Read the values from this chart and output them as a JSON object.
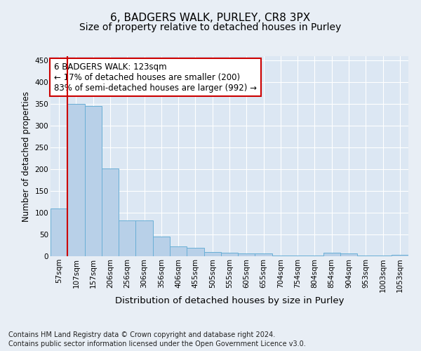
{
  "title": "6, BADGERS WALK, PURLEY, CR8 3PX",
  "subtitle": "Size of property relative to detached houses in Purley",
  "xlabel": "Distribution of detached houses by size in Purley",
  "ylabel": "Number of detached properties",
  "footnote1": "Contains HM Land Registry data © Crown copyright and database right 2024.",
  "footnote2": "Contains public sector information licensed under the Open Government Licence v3.0.",
  "categories": [
    "57sqm",
    "107sqm",
    "157sqm",
    "206sqm",
    "256sqm",
    "306sqm",
    "356sqm",
    "406sqm",
    "455sqm",
    "505sqm",
    "555sqm",
    "605sqm",
    "655sqm",
    "704sqm",
    "754sqm",
    "804sqm",
    "854sqm",
    "904sqm",
    "953sqm",
    "1003sqm",
    "1053sqm"
  ],
  "values": [
    110,
    350,
    345,
    202,
    83,
    83,
    46,
    22,
    20,
    10,
    8,
    7,
    6,
    1,
    1,
    1,
    8,
    6,
    1,
    1,
    4
  ],
  "bar_color": "#b8d0e8",
  "bar_edge_color": "#6aafd6",
  "vline_color": "#cc0000",
  "annotation_text": "6 BADGERS WALK: 123sqm\n← 17% of detached houses are smaller (200)\n83% of semi-detached houses are larger (992) →",
  "annotation_box_color": "#ffffff",
  "annotation_box_edge_color": "#cc0000",
  "annotation_fontsize": 8.5,
  "ylim": [
    0,
    460
  ],
  "yticks": [
    0,
    50,
    100,
    150,
    200,
    250,
    300,
    350,
    400,
    450
  ],
  "background_color": "#e8eef5",
  "plot_background_color": "#dce7f3",
  "title_fontsize": 11,
  "subtitle_fontsize": 10,
  "xlabel_fontsize": 9.5,
  "ylabel_fontsize": 8.5,
  "tick_fontsize": 7.5,
  "footnote_fontsize": 7
}
